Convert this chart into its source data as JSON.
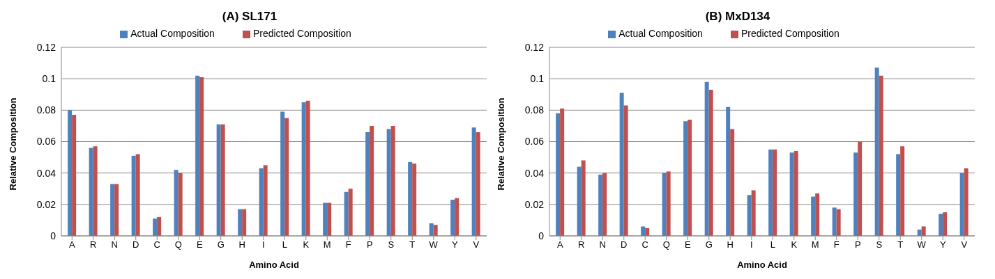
{
  "chart_data": [
    {
      "type": "bar",
      "title": "(A) SL171",
      "xlabel": "Amino Acid",
      "ylabel": "Relative Composition",
      "categories": [
        "A",
        "R",
        "N",
        "D",
        "C",
        "Q",
        "E",
        "G",
        "H",
        "I",
        "L",
        "K",
        "M",
        "F",
        "P",
        "S",
        "T",
        "W",
        "Y",
        "V"
      ],
      "series": [
        {
          "name": "Actual Composition",
          "color": "#4f81bd",
          "values": [
            0.08,
            0.056,
            0.033,
            0.051,
            0.011,
            0.042,
            0.102,
            0.071,
            0.017,
            0.043,
            0.079,
            0.085,
            0.021,
            0.028,
            0.066,
            0.068,
            0.047,
            0.008,
            0.023,
            0.069
          ]
        },
        {
          "name": "Predicted Composition",
          "color": "#c0504d",
          "values": [
            0.077,
            0.057,
            0.033,
            0.052,
            0.012,
            0.04,
            0.101,
            0.071,
            0.017,
            0.045,
            0.075,
            0.086,
            0.021,
            0.03,
            0.07,
            0.07,
            0.046,
            0.007,
            0.024,
            0.066
          ]
        }
      ],
      "ylim": [
        0,
        0.12
      ],
      "yticks": [
        0,
        0.02,
        0.04,
        0.06,
        0.08,
        0.1,
        0.12
      ],
      "grid": "y",
      "legend": "top"
    },
    {
      "type": "bar",
      "title": "(B) MxD134",
      "xlabel": "Amino Acid",
      "ylabel": "Relative Composition",
      "categories": [
        "A",
        "R",
        "N",
        "D",
        "C",
        "Q",
        "E",
        "G",
        "H",
        "I",
        "L",
        "K",
        "M",
        "F",
        "P",
        "S",
        "T",
        "W",
        "Y",
        "V"
      ],
      "series": [
        {
          "name": "Actual Composition",
          "color": "#4f81bd",
          "values": [
            0.078,
            0.044,
            0.039,
            0.091,
            0.006,
            0.04,
            0.073,
            0.098,
            0.082,
            0.026,
            0.055,
            0.053,
            0.025,
            0.018,
            0.053,
            0.107,
            0.052,
            0.004,
            0.014,
            0.04
          ]
        },
        {
          "name": "Predicted Composition",
          "color": "#c0504d",
          "values": [
            0.081,
            0.048,
            0.04,
            0.083,
            0.005,
            0.041,
            0.074,
            0.093,
            0.068,
            0.029,
            0.055,
            0.054,
            0.027,
            0.017,
            0.06,
            0.102,
            0.057,
            0.006,
            0.015,
            0.043
          ]
        }
      ],
      "ylim": [
        0,
        0.12
      ],
      "yticks": [
        0,
        0.02,
        0.04,
        0.06,
        0.08,
        0.1,
        0.12
      ],
      "grid": "y",
      "legend": "top"
    }
  ]
}
